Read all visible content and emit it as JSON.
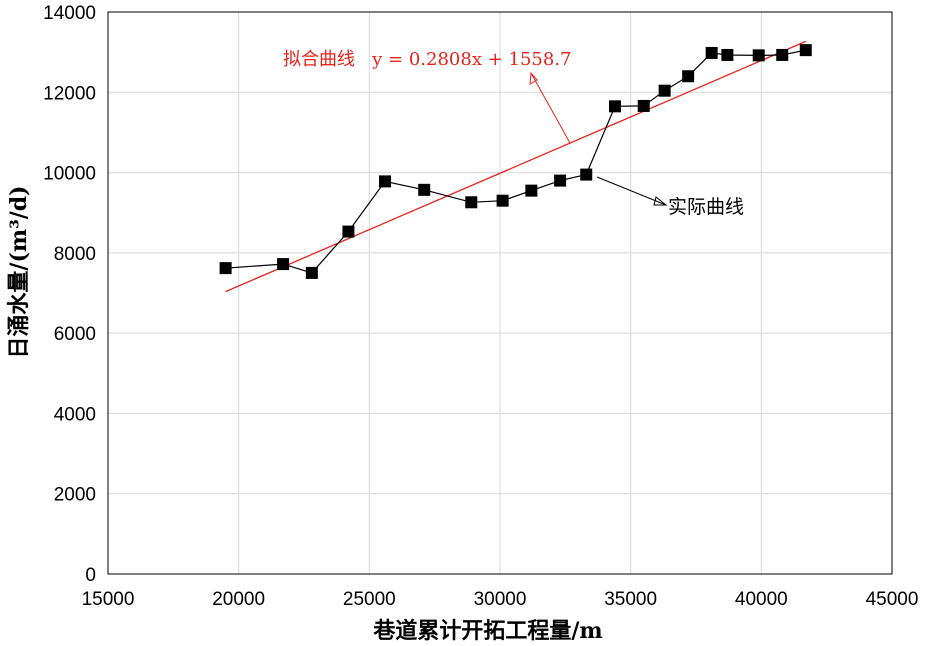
{
  "chart_data": {
    "type": "line",
    "xlabel": "巷道累计开拓工程量/m",
    "ylabel": "日涌水量/(m³/d)",
    "xlim": [
      15000,
      45000
    ],
    "ylim": [
      0,
      14000
    ],
    "x_ticks": [
      "15000",
      "20000",
      "25000",
      "30000",
      "35000",
      "40000",
      "45000"
    ],
    "y_ticks": [
      "0",
      "2000",
      "4000",
      "6000",
      "8000",
      "10000",
      "12000",
      "14000"
    ],
    "grid": true,
    "series": [
      {
        "name": "实际曲线",
        "color": "#000000",
        "marker": "square",
        "points": [
          [
            19500,
            7620
          ],
          [
            21700,
            7720
          ],
          [
            22800,
            7500
          ],
          [
            24200,
            8530
          ],
          [
            25600,
            9780
          ],
          [
            27100,
            9570
          ],
          [
            28900,
            9260
          ],
          [
            30100,
            9300
          ],
          [
            31200,
            9550
          ],
          [
            32300,
            9800
          ],
          [
            33300,
            9950
          ],
          [
            34400,
            11650
          ],
          [
            35500,
            11660
          ],
          [
            36300,
            12040
          ],
          [
            37200,
            12400
          ],
          [
            38100,
            12980
          ],
          [
            38700,
            12930
          ],
          [
            39900,
            12920
          ],
          [
            40800,
            12930
          ],
          [
            41700,
            13050
          ]
        ]
      },
      {
        "name": "拟合曲线",
        "color": "#e8231a",
        "slope": 0.2808,
        "intercept": 1558.7,
        "x_range": [
          19500,
          41700
        ]
      }
    ],
    "annotations": {
      "fit": "拟合曲线   y = 0.2808x + 1558.7",
      "actual": "实际曲线"
    }
  }
}
